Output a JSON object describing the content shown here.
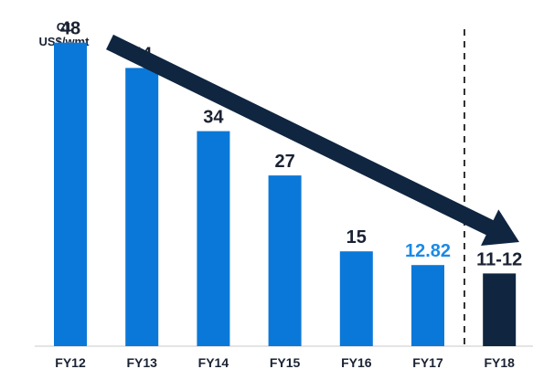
{
  "chart_data": {
    "type": "bar",
    "unit_label": [
      "C1",
      "US$/wmt"
    ],
    "categories": [
      "FY12",
      "FY13",
      "FY14",
      "FY15",
      "FY16",
      "FY17",
      "FY18"
    ],
    "values": [
      48,
      44,
      34,
      27,
      15,
      12.82,
      11.5
    ],
    "value_labels": [
      "48",
      "44",
      "34",
      "27",
      "15",
      "12.82",
      "11-12"
    ],
    "ylim": [
      0,
      52
    ],
    "grid": false,
    "legend": "none",
    "forecast_divider_after": "FY17",
    "trend_arrow": "decreasing",
    "colors": {
      "bar": "#0a78d8",
      "bar_forecast": "#0f2540",
      "label": "#1a2233",
      "label_highlight": "#1a8ae6",
      "arrow": "#0f2540",
      "baseline": "#c8c8c8",
      "divider": "#333333"
    },
    "bar_colors": [
      "bar",
      "bar",
      "bar",
      "bar",
      "bar",
      "bar",
      "bar_forecast"
    ],
    "label_colors": [
      "label",
      "label",
      "label",
      "label",
      "label",
      "label_highlight",
      "label"
    ]
  }
}
